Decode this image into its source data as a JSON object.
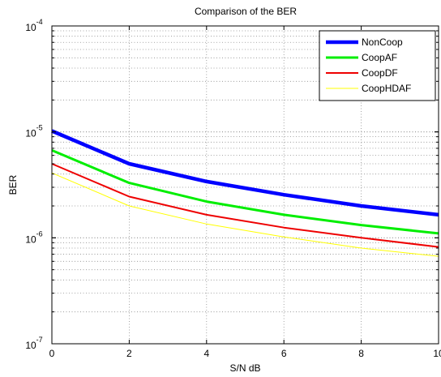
{
  "chart_data": {
    "type": "line",
    "title": "Comparison of the  BER",
    "xlabel": "S/N dB",
    "ylabel": "BER",
    "x": [
      0,
      2,
      4,
      6,
      8,
      10
    ],
    "x_ticks": [
      "0",
      "2",
      "4",
      "6",
      "8",
      "10"
    ],
    "xlim": [
      0,
      10
    ],
    "ylim": [
      1e-07,
      0.0001
    ],
    "y_scale": "log",
    "y_ticks": [
      {
        "base": "10",
        "exp": "-7",
        "value": 1e-07
      },
      {
        "base": "10",
        "exp": "-6",
        "value": 1e-06
      },
      {
        "base": "10",
        "exp": "-5",
        "value": 1e-05
      },
      {
        "base": "10",
        "exp": "-4",
        "value": 0.0001
      }
    ],
    "grid": true,
    "legend_position": "top-right",
    "series": [
      {
        "name": "NonCoop",
        "color": "#0000ff",
        "width": 4.5,
        "values": [
          1.02e-05,
          5e-06,
          3.4e-06,
          2.55e-06,
          2e-06,
          1.65e-06
        ]
      },
      {
        "name": "CoopAF",
        "color": "#00ee00",
        "width": 3,
        "values": [
          6.7e-06,
          3.3e-06,
          2.2e-06,
          1.65e-06,
          1.32e-06,
          1.1e-06
        ]
      },
      {
        "name": "CoopDF",
        "color": "#ee0000",
        "width": 2,
        "values": [
          5e-06,
          2.45e-06,
          1.65e-06,
          1.25e-06,
          1e-06,
          8.2e-07
        ]
      },
      {
        "name": "CoopHDAF",
        "color": "#ffff00",
        "width": 1,
        "values": [
          4.1e-06,
          2e-06,
          1.35e-06,
          1.02e-06,
          8e-07,
          6.7e-07
        ]
      }
    ]
  }
}
